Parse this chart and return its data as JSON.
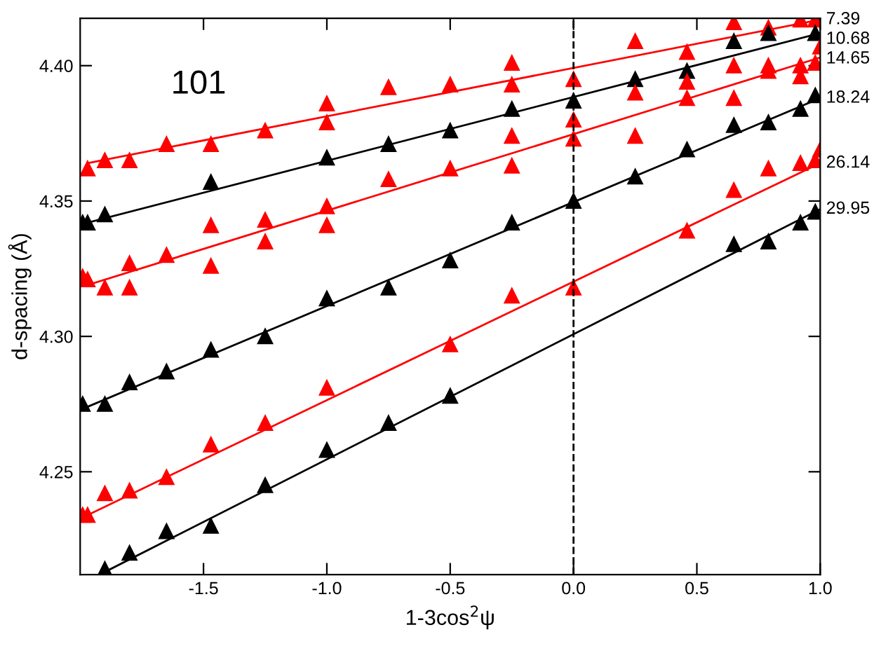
{
  "chart_data": {
    "type": "scatter",
    "xlabel": "1-3cos$^{2}$ψ",
    "ylabel": "d-spacing (Å)",
    "annotations": [
      "101",
      "7.39",
      "10.68",
      "14.65",
      "18.24",
      "26.14",
      "29.95"
    ],
    "xlim": [
      -2.0,
      1.0
    ],
    "ylim": [
      4.212,
      4.4175
    ],
    "xticks": [
      {
        "value": -1.5,
        "label": "-1.5"
      },
      {
        "value": -1.0,
        "label": "-1.0"
      },
      {
        "value": -0.5,
        "label": "-0.5"
      },
      {
        "value": 0.0,
        "label": "0.0"
      },
      {
        "value": 0.5,
        "label": "0.5"
      },
      {
        "value": 1.0,
        "label": "1.0"
      }
    ],
    "yticks": [
      4.25,
      {
        "value": 4.3,
        "label": "4.30"
      },
      4.35,
      {
        "value": 4.4,
        "label": "4.40"
      }
    ],
    "ref_lines": [
      {
        "axis": "x",
        "value": 0,
        "label": null,
        "color": "#000000",
        "line_style": "dashed"
      }
    ],
    "grid": false,
    "legend": false,
    "series": [
      {
        "marker": "triangle",
        "color": "#ff0000",
        "x": [
          -1.97,
          -1.9,
          -1.8,
          -1.65,
          -1.47,
          -1.25,
          -1.0,
          -1.0,
          -0.75,
          -0.5,
          -0.25,
          -0.25,
          0,
          0.25,
          0.46,
          0.65,
          0.79,
          0.92,
          0.98
        ],
        "values": [
          4.362,
          4.365,
          4.365,
          4.371,
          4.371,
          4.376,
          4.386,
          4.379,
          4.392,
          4.393,
          4.401,
          4.393,
          4.395,
          4.409,
          4.405,
          4.416,
          4.414,
          4.417,
          4.417
        ]
      },
      {
        "type": "line",
        "color": "#ff0000",
        "x": [
          -1.97,
          1.0
        ],
        "values": [
          4.364,
          4.417
        ]
      },
      {
        "marker": "triangle",
        "color": "#000000",
        "x": [
          -1.99,
          -1.97,
          -1.9,
          -1.47,
          -1.0,
          -0.75,
          -0.5,
          -0.25,
          0,
          0.25,
          0.46,
          0.65,
          0.79,
          0.98
        ],
        "values": [
          4.342,
          4.342,
          4.345,
          4.357,
          4.366,
          4.371,
          4.376,
          4.384,
          4.387,
          4.395,
          4.398,
          4.409,
          4.412,
          4.412
        ]
      },
      {
        "type": "line",
        "color": "#000000",
        "x": [
          -1.97,
          1.0
        ],
        "values": [
          4.342,
          4.412
        ]
      },
      {
        "marker": "triangle",
        "color": "#ff0000",
        "x": [
          -1.99,
          -1.97,
          -1.9,
          -1.8,
          -1.8,
          -1.65,
          -1.47,
          -1.47,
          -1.25,
          -1.25,
          -1.0,
          -1.0,
          -0.75,
          -0.5,
          -0.25,
          -0.25,
          0,
          0,
          0.25,
          0.25,
          0.46,
          0.46,
          0.65,
          0.65,
          0.79,
          0.79,
          0.92,
          0.92,
          0.98,
          1.0
        ],
        "values": [
          4.322,
          4.321,
          4.318,
          4.327,
          4.318,
          4.33,
          4.341,
          4.326,
          4.343,
          4.335,
          4.348,
          4.341,
          4.358,
          4.362,
          4.374,
          4.363,
          4.38,
          4.373,
          4.39,
          4.374,
          4.394,
          4.388,
          4.4,
          4.388,
          4.4,
          4.398,
          4.4,
          4.396,
          4.401,
          4.407
        ]
      },
      {
        "type": "line",
        "color": "#ff0000",
        "x": [
          -1.97,
          1.0
        ],
        "values": [
          4.319,
          4.403
        ]
      },
      {
        "marker": "triangle",
        "color": "#000000",
        "x": [
          -1.99,
          -1.9,
          -1.8,
          -1.65,
          -1.47,
          -1.25,
          -1.0,
          -0.75,
          -0.5,
          -0.25,
          0,
          0.25,
          0.46,
          0.65,
          0.79,
          0.92,
          0.98
        ],
        "values": [
          4.275,
          4.275,
          4.283,
          4.287,
          4.295,
          4.3,
          4.314,
          4.318,
          4.328,
          4.342,
          4.35,
          4.359,
          4.369,
          4.378,
          4.379,
          4.384,
          4.389
        ]
      },
      {
        "type": "line",
        "color": "#000000",
        "x": [
          -1.97,
          1.0
        ],
        "values": [
          4.274,
          4.388
        ]
      },
      {
        "marker": "triangle",
        "color": "#ff0000",
        "x": [
          -1.99,
          -1.97,
          -1.9,
          -1.8,
          -1.65,
          -1.47,
          -1.25,
          -1.0,
          -0.5,
          -0.25,
          0,
          0.46,
          0.65,
          0.79,
          0.92,
          0.98,
          1.0
        ],
        "values": [
          4.234,
          4.234,
          4.242,
          4.243,
          4.248,
          4.26,
          4.268,
          4.281,
          4.297,
          4.315,
          4.318,
          4.339,
          4.354,
          4.362,
          4.364,
          4.365,
          4.369
        ]
      },
      {
        "type": "line",
        "color": "#ff0000",
        "x": [
          -1.97,
          1.0
        ],
        "values": [
          4.234,
          4.364
        ]
      },
      {
        "marker": "triangle",
        "color": "#000000",
        "x": [
          -1.9,
          -1.8,
          -1.65,
          -1.47,
          -1.25,
          -1.0,
          -0.75,
          -0.5,
          0.65,
          0.79,
          0.92,
          0.98
        ],
        "values": [
          4.214,
          4.22,
          4.228,
          4.23,
          4.245,
          4.258,
          4.268,
          4.278,
          4.334,
          4.335,
          4.342,
          4.346
        ]
      },
      {
        "type": "line",
        "color": "#000000",
        "x": [
          -1.9,
          1.0
        ],
        "values": [
          4.213,
          4.347
        ]
      }
    ]
  }
}
